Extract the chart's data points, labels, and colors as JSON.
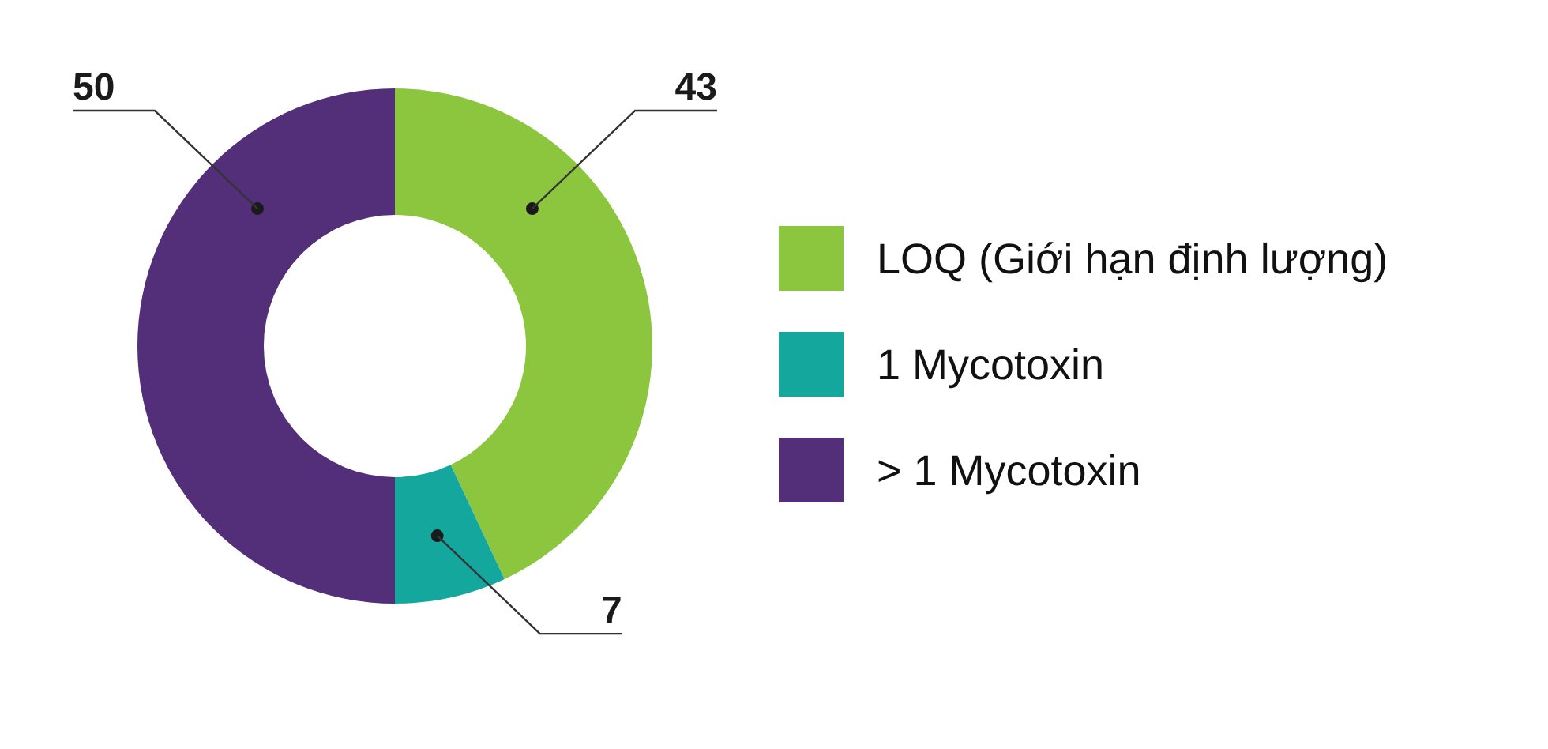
{
  "chart_data": {
    "type": "donut",
    "categories": [
      "LOQ (Giới hạn định lượng)",
      "1 Mycotoxin",
      "> 1 Mycotoxin"
    ],
    "values": [
      43,
      7,
      50
    ],
    "colors": [
      "#8cc63f",
      "#14a79d",
      "#532f79"
    ],
    "data_labels": true,
    "legend": "right"
  }
}
